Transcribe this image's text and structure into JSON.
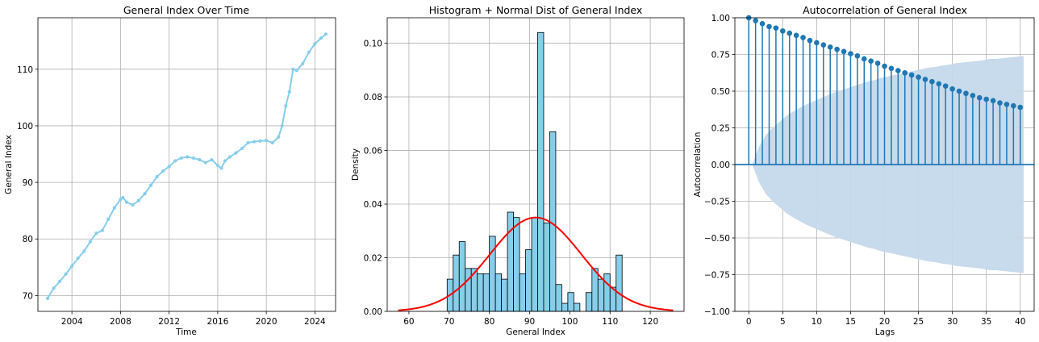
{
  "chart_data": [
    {
      "type": "line",
      "title": "General Index Over Time",
      "xlabel": "Time",
      "ylabel": "General Index",
      "xlim": [
        2001.2,
        2025.7
      ],
      "ylim": [
        67.2,
        119.1
      ],
      "xticks": [
        2004,
        2008,
        2012,
        2016,
        2020,
        2024
      ],
      "yticks": [
        70,
        80,
        90,
        100,
        110
      ],
      "grid": true,
      "color": "#87ceeb",
      "marker": "point",
      "x": [
        2002.0,
        2002.5,
        2003.0,
        2003.5,
        2004.0,
        2004.5,
        2005.0,
        2005.5,
        2006.0,
        2006.5,
        2007.0,
        2007.5,
        2008.0,
        2008.2,
        2008.5,
        2009.0,
        2009.5,
        2010.0,
        2010.5,
        2011.0,
        2011.5,
        2012.0,
        2012.5,
        2013.0,
        2013.5,
        2014.0,
        2014.5,
        2015.0,
        2015.5,
        2016.0,
        2016.3,
        2016.6,
        2017.0,
        2017.5,
        2018.0,
        2018.5,
        2019.0,
        2019.5,
        2020.0,
        2020.5,
        2021.0,
        2021.3,
        2021.6,
        2021.9,
        2022.2,
        2022.5,
        2023.0,
        2023.5,
        2024.0,
        2024.5,
        2024.9
      ],
      "y": [
        69.5,
        71.3,
        72.5,
        73.8,
        75.2,
        76.6,
        77.8,
        79.5,
        81.0,
        81.5,
        83.5,
        85.5,
        87.0,
        87.3,
        86.5,
        86.0,
        86.8,
        88.0,
        89.5,
        91.0,
        92.0,
        92.8,
        93.8,
        94.3,
        94.5,
        94.3,
        94.0,
        93.5,
        94.0,
        93.0,
        92.5,
        93.8,
        94.5,
        95.2,
        96.0,
        97.0,
        97.2,
        97.3,
        97.4,
        97.0,
        98.0,
        100.0,
        103.5,
        106.0,
        110.0,
        109.8,
        111.0,
        113.0,
        114.5,
        115.5,
        116.2
      ]
    },
    {
      "type": "bar",
      "title": "Histogram + Normal Dist of General Index",
      "xlabel": "General Index",
      "ylabel": "Density",
      "xlim": [
        54.6,
        128.4
      ],
      "ylim": [
        0,
        0.1095
      ],
      "xticks": [
        60,
        70,
        80,
        90,
        100,
        110,
        120
      ],
      "yticks": [
        0.0,
        0.02,
        0.04,
        0.06,
        0.08,
        0.1
      ],
      "ytick_labels": [
        "0.00",
        "0.02",
        "0.04",
        "0.06",
        "0.08",
        "0.10"
      ],
      "grid": true,
      "bar_color": "#87ceeb",
      "edge_color": "#000000",
      "bin_start": 69.5,
      "bin_width": 1.5,
      "values": [
        0.012,
        0.021,
        0.026,
        0.016,
        0.016,
        0.014,
        0.014,
        0.028,
        0.014,
        0.012,
        0.037,
        0.035,
        0.014,
        0.023,
        0.035,
        0.104,
        0.033,
        0.067,
        0.01,
        0.003,
        0.007,
        0.003,
        0.0,
        0.007,
        0.016,
        0.012,
        0.014,
        0.009,
        0.021
      ],
      "normal": {
        "mean": 91.5,
        "std": 11.4,
        "color": "#ff0000",
        "x_range": [
          57.3,
          125.7
        ]
      }
    },
    {
      "type": "stem",
      "title": "Autocorrelation of General Index",
      "xlabel": "Lags",
      "ylabel": "Autocorrelation",
      "xlim": [
        -2.05,
        42.05
      ],
      "ylim": [
        -1.0,
        1.0
      ],
      "xticks": [
        0,
        5,
        10,
        15,
        20,
        25,
        30,
        35,
        40
      ],
      "yticks": [
        -1.0,
        -0.75,
        -0.5,
        -0.25,
        0.0,
        0.25,
        0.5,
        0.75,
        1.0
      ],
      "ytick_labels": [
        "−1.00",
        "−0.75",
        "−0.50",
        "−0.25",
        "0.00",
        "0.25",
        "0.50",
        "0.75",
        "1.00"
      ],
      "grid": true,
      "color": "#1f77b4",
      "band_color": "#c5d9eb",
      "lags": [
        0,
        1,
        2,
        3,
        4,
        5,
        6,
        7,
        8,
        9,
        10,
        11,
        12,
        13,
        14,
        15,
        16,
        17,
        18,
        19,
        20,
        21,
        22,
        23,
        24,
        25,
        26,
        27,
        28,
        29,
        30,
        31,
        32,
        33,
        34,
        35,
        36,
        37,
        38,
        39,
        40
      ],
      "values": [
        1.0,
        0.98,
        0.96,
        0.94,
        0.93,
        0.91,
        0.895,
        0.88,
        0.865,
        0.845,
        0.83,
        0.815,
        0.8,
        0.785,
        0.77,
        0.755,
        0.74,
        0.72,
        0.705,
        0.69,
        0.67,
        0.655,
        0.64,
        0.625,
        0.61,
        0.595,
        0.58,
        0.565,
        0.55,
        0.535,
        0.515,
        0.5,
        0.485,
        0.47,
        0.455,
        0.445,
        0.435,
        0.42,
        0.41,
        0.4,
        0.39
      ],
      "confint_upper": [
        0.0,
        0.12,
        0.2,
        0.25,
        0.29,
        0.33,
        0.36,
        0.385,
        0.41,
        0.43,
        0.45,
        0.47,
        0.49,
        0.505,
        0.52,
        0.535,
        0.55,
        0.565,
        0.575,
        0.59,
        0.6,
        0.61,
        0.62,
        0.63,
        0.64,
        0.65,
        0.66,
        0.665,
        0.675,
        0.68,
        0.69,
        0.695,
        0.7,
        0.705,
        0.71,
        0.72,
        0.72,
        0.725,
        0.73,
        0.735,
        0.74
      ]
    }
  ]
}
